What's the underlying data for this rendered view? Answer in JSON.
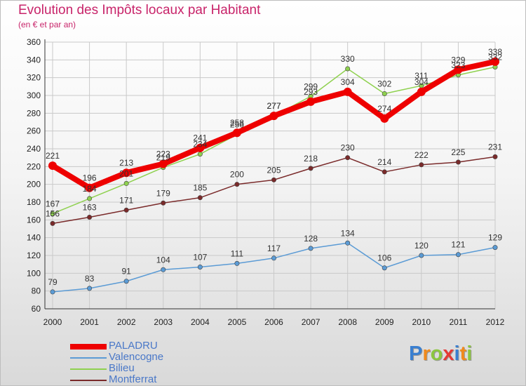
{
  "title": "Evolution des Impôts locaux par Habitant",
  "subtitle": "(en € et par an)",
  "logo": {
    "letters": [
      "P",
      "r",
      "o",
      "x",
      "i",
      "t",
      "i"
    ],
    "colors": [
      "#3a7fd0",
      "#f08a1c",
      "#8cc63f",
      "#e53935",
      "#3a7fd0",
      "#f08a1c",
      "#8cc63f"
    ]
  },
  "chart_data": {
    "type": "line",
    "x": [
      "2000",
      "2001",
      "2002",
      "2003",
      "2004",
      "2005",
      "2006",
      "2007",
      "2008",
      "2009",
      "2010",
      "2011",
      "2012"
    ],
    "ylim": [
      60,
      360
    ],
    "yticks": [
      "60",
      "80",
      "100",
      "120",
      "140",
      "160",
      "180",
      "200",
      "220",
      "240",
      "260",
      "280",
      "300",
      "320",
      "340",
      "360"
    ],
    "grid": true,
    "legend_position": "bottom-left",
    "series": [
      {
        "name": "PALADRU",
        "color": "#ee0000",
        "thick": true,
        "values": [
          221,
          196,
          213,
          223,
          241,
          258,
          277,
          293,
          304,
          274,
          304,
          329,
          338
        ],
        "labels": [
          "221",
          "196",
          "213",
          "223",
          "241",
          "258",
          "277",
          "293",
          "304",
          "274",
          "304",
          "329",
          "338"
        ]
      },
      {
        "name": "Valencogne",
        "color": "#5b9bd5",
        "thick": false,
        "values": [
          79,
          83,
          91,
          104,
          107,
          111,
          117,
          128,
          134,
          106,
          120,
          121,
          129
        ],
        "labels": [
          "79",
          "83",
          "91",
          "104",
          "107",
          "111",
          "117",
          "128",
          "134",
          "106",
          "120",
          "121",
          "129"
        ]
      },
      {
        "name": "Bilieu",
        "color": "#8fd14f",
        "thick": false,
        "values": [
          167,
          184,
          201,
          219,
          234,
          256,
          277,
          299,
          330,
          302,
          311,
          323,
          332
        ],
        "labels": [
          "167",
          "184",
          "201",
          "219",
          "234",
          "256",
          "277",
          "299",
          "330",
          "302",
          "311",
          "323",
          "332"
        ]
      },
      {
        "name": "Montferrat",
        "color": "#7a2a2a",
        "thick": false,
        "values": [
          156,
          163,
          171,
          179,
          185,
          200,
          205,
          218,
          230,
          214,
          222,
          225,
          231
        ],
        "labels": [
          "156",
          "163",
          "171",
          "179",
          "185",
          "200",
          "205",
          "218",
          "230",
          "214",
          "222",
          "225",
          "231"
        ]
      }
    ]
  }
}
